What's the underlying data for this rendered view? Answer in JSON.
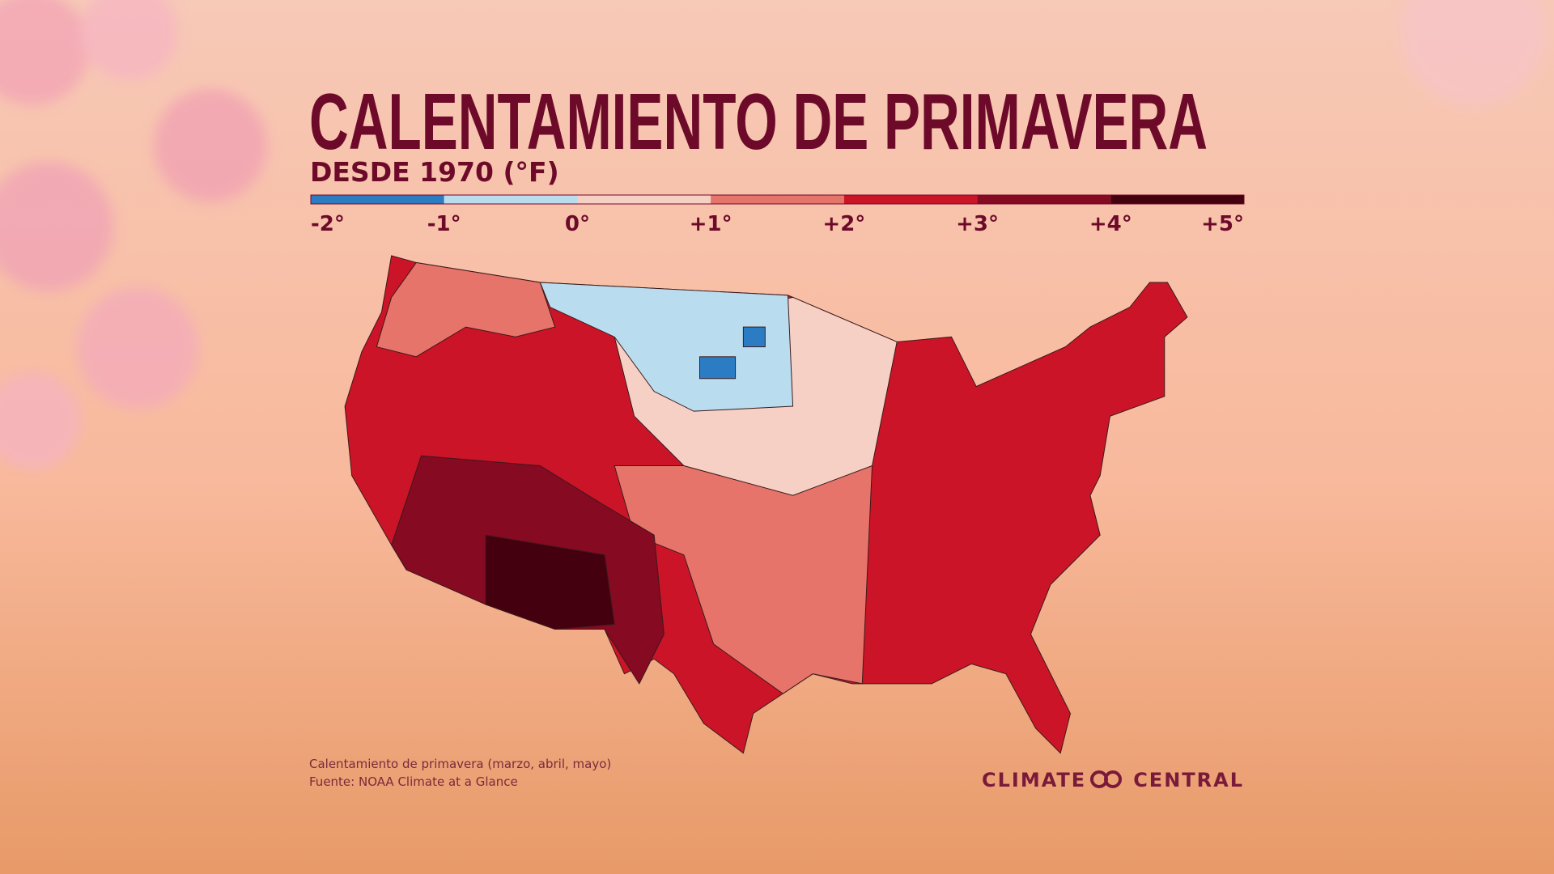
{
  "header": {
    "title": "CALENTAMIENTO DE PRIMAVERA",
    "subtitle": "DESDE 1970 (°F)"
  },
  "legend": {
    "colors": [
      "#2c7cc4",
      "#b9dcee",
      "#f6d0c5",
      "#e6746a",
      "#cc1428",
      "#850a22",
      "#45000f"
    ],
    "labels": [
      "-2°",
      "-1°",
      "0°",
      "+1°",
      "+2°",
      "+3°",
      "+4°",
      "+5°"
    ]
  },
  "footnote": {
    "lines": [
      "Calentamiento de primavera (marzo, abril, mayo)",
      "Fuente: NOAA Climate at a Glance"
    ]
  },
  "logo": {
    "left": "CLIMATE",
    "right": "CENTRAL"
  }
}
